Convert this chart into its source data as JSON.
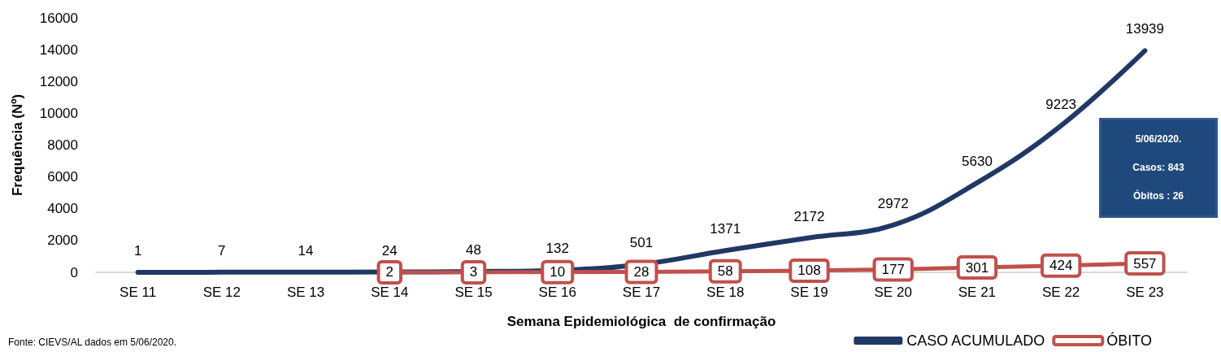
{
  "chart_data": {
    "type": "line",
    "xlabel": "Semana Epidemiológica  de confirmação",
    "ylabel": "Frequência (Nº)",
    "categories": [
      "SE 11",
      "SE 12",
      "SE 13",
      "SE 14",
      "SE 15",
      "SE 16",
      "SE 17",
      "SE 18",
      "SE 19",
      "SE 20",
      "SE 21",
      "SE 22",
      "SE 23"
    ],
    "series": [
      {
        "name": "CASO ACUMULADO",
        "color": "#203864",
        "values": [
          1,
          7,
          14,
          24,
          48,
          132,
          501,
          1371,
          2172,
          2972,
          5630,
          9223,
          13939
        ]
      },
      {
        "name": "ÓBITO",
        "color": "#c0504d",
        "marker": "square",
        "values": [
          null,
          null,
          null,
          2,
          3,
          10,
          28,
          58,
          108,
          177,
          301,
          424,
          557
        ]
      }
    ],
    "ylim": [
      0,
      16000
    ],
    "yticks": [
      0,
      2000,
      4000,
      6000,
      8000,
      10000,
      12000,
      14000,
      16000
    ],
    "grid": false,
    "legend": "bottom right",
    "data_labels": true,
    "marker": "none",
    "line_style": "solid",
    "annotations": [
      "Fonte: CIEVS/AL dados em 5/06/2020.",
      "5/06/2020.",
      "Casos: 843",
      "Óbitos : 26"
    ]
  }
}
